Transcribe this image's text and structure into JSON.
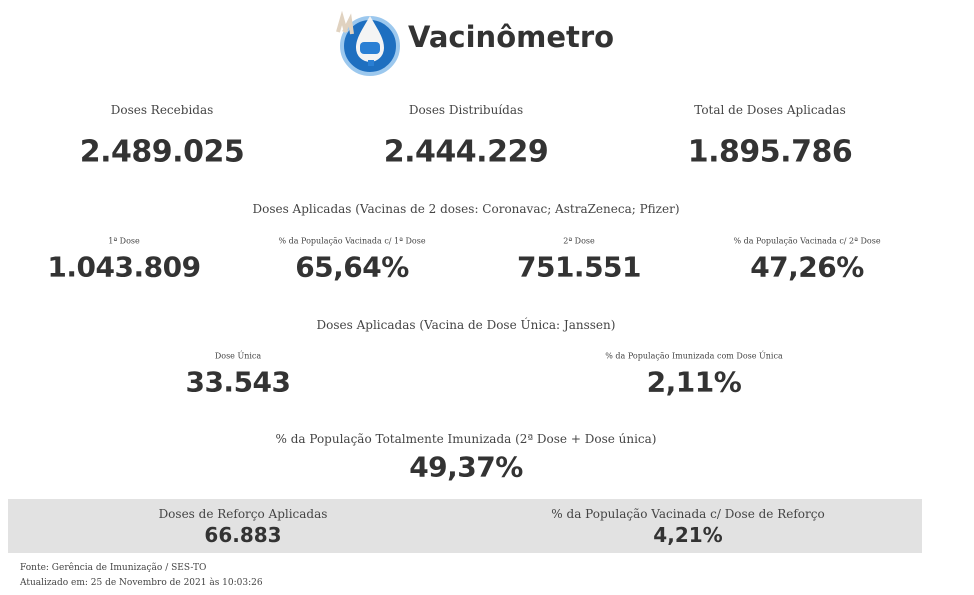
{
  "header": {
    "title": "Vacinômetro"
  },
  "totals": [
    {
      "label": "Doses Recebidas",
      "value": "2.489.025"
    },
    {
      "label": "Doses Distribuídas",
      "value": "2.444.229"
    },
    {
      "label": "Total de Doses Aplicadas",
      "value": "1.895.786"
    }
  ],
  "two_dose_section": {
    "title": "Doses Aplicadas (Vacinas de 2 doses: Coronavac; AstraZeneca; Pfizer)",
    "items": [
      {
        "label": "1ª Dose",
        "value": "1.043.809"
      },
      {
        "label": "% da População Vacinada c/ 1ª Dose",
        "value": "65,64%"
      },
      {
        "label": "2ª Dose",
        "value": "751.551"
      },
      {
        "label": "% da População Vacinada c/ 2ª Dose",
        "value": "47,26%"
      }
    ]
  },
  "single_dose_section": {
    "title": "Doses Aplicadas (Vacina de Dose Única: Janssen)",
    "items": [
      {
        "label": "Dose Única",
        "value": "33.543"
      },
      {
        "label": "% da População Imunizada com Dose Única",
        "value": "2,11%"
      }
    ]
  },
  "full_immunization": {
    "label": "% da População Totalmente Imunizada (2ª Dose + Dose única)",
    "value": "49,37%"
  },
  "booster": [
    {
      "label": "Doses de Reforço Aplicadas",
      "value": "66.883"
    },
    {
      "label": "% da População Vacinada c/ Dose de Reforço",
      "value": "4,21%"
    }
  ],
  "footer": {
    "source": "Fonte: Gerência de Imunização / SES-TO",
    "updated": "Atualizado em: 25 de Novembro de 2021 às 10:03:26"
  }
}
